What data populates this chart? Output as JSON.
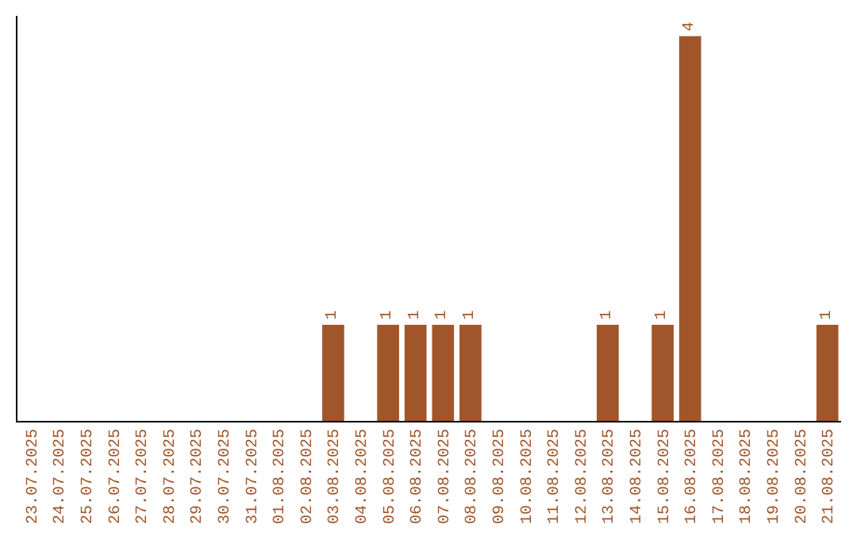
{
  "chart_data": {
    "type": "bar",
    "categories": [
      "23.07.2025",
      "24.07.2025",
      "25.07.2025",
      "26.07.2025",
      "27.07.2025",
      "28.07.2025",
      "29.07.2025",
      "30.07.2025",
      "31.07.2025",
      "01.08.2025",
      "02.08.2025",
      "03.08.2025",
      "04.08.2025",
      "05.08.2025",
      "06.08.2025",
      "07.08.2025",
      "08.08.2025",
      "09.08.2025",
      "10.08.2025",
      "11.08.2025",
      "12.08.2025",
      "13.08.2025",
      "14.08.2025",
      "15.08.2025",
      "16.08.2025",
      "17.08.2025",
      "18.08.2025",
      "19.08.2025",
      "20.08.2025",
      "21.08.2025"
    ],
    "values": [
      0,
      0,
      0,
      0,
      0,
      0,
      0,
      0,
      0,
      0,
      0,
      1,
      0,
      1,
      1,
      1,
      1,
      0,
      0,
      0,
      0,
      1,
      0,
      1,
      4,
      0,
      0,
      0,
      0,
      1
    ],
    "value_labels": [
      null,
      null,
      null,
      null,
      null,
      null,
      null,
      null,
      null,
      null,
      null,
      "1",
      null,
      "1",
      "1",
      "1",
      "1",
      null,
      null,
      null,
      null,
      "1",
      null,
      "1",
      "4",
      null,
      null,
      null,
      null,
      "1"
    ],
    "color": "#a0562a"
  }
}
